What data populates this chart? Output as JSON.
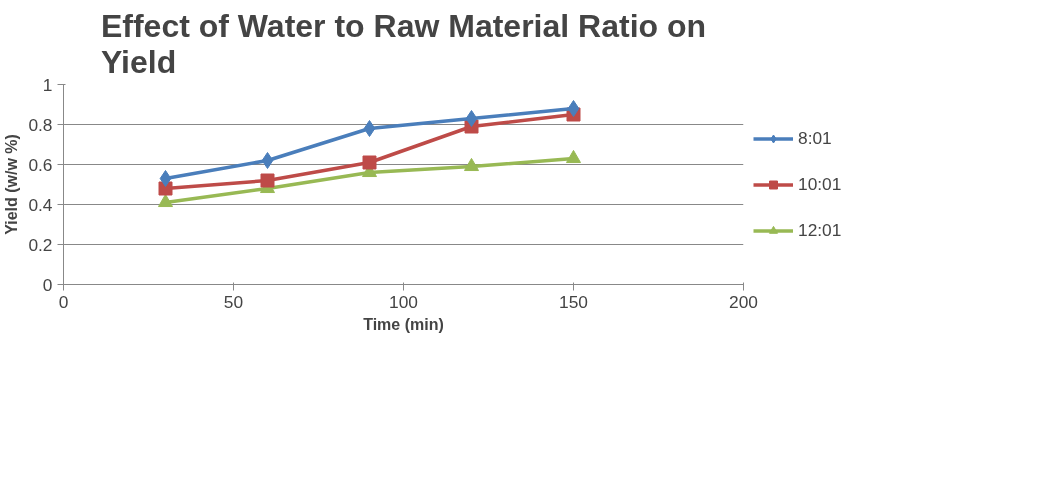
{
  "chart_data": {
    "type": "line",
    "title": "Effect of Water to Raw Material Ratio on Yield",
    "xlabel": "Time (min)",
    "ylabel": "Yield (w/w %)",
    "x": [
      30,
      60,
      90,
      120,
      150
    ],
    "series": [
      {
        "name": "8:01",
        "color": "#4a7ebb",
        "marker": "diamond",
        "values": [
          0.53,
          0.62,
          0.78,
          0.83,
          0.88
        ]
      },
      {
        "name": "10:01",
        "color": "#be4b48",
        "marker": "square",
        "values": [
          0.48,
          0.52,
          0.61,
          0.79,
          0.85
        ]
      },
      {
        "name": "12:01",
        "color": "#98b954",
        "marker": "triangle",
        "values": [
          0.41,
          0.48,
          0.56,
          0.59,
          0.63
        ]
      }
    ],
    "xlim": [
      0,
      200
    ],
    "xticks": [
      0,
      50,
      100,
      150,
      200
    ],
    "ylim": [
      0,
      1
    ],
    "yticks": [
      0,
      0.2,
      0.4,
      0.6,
      0.8,
      1
    ],
    "grid": "y",
    "legend": "right",
    "line_style": "solid"
  }
}
